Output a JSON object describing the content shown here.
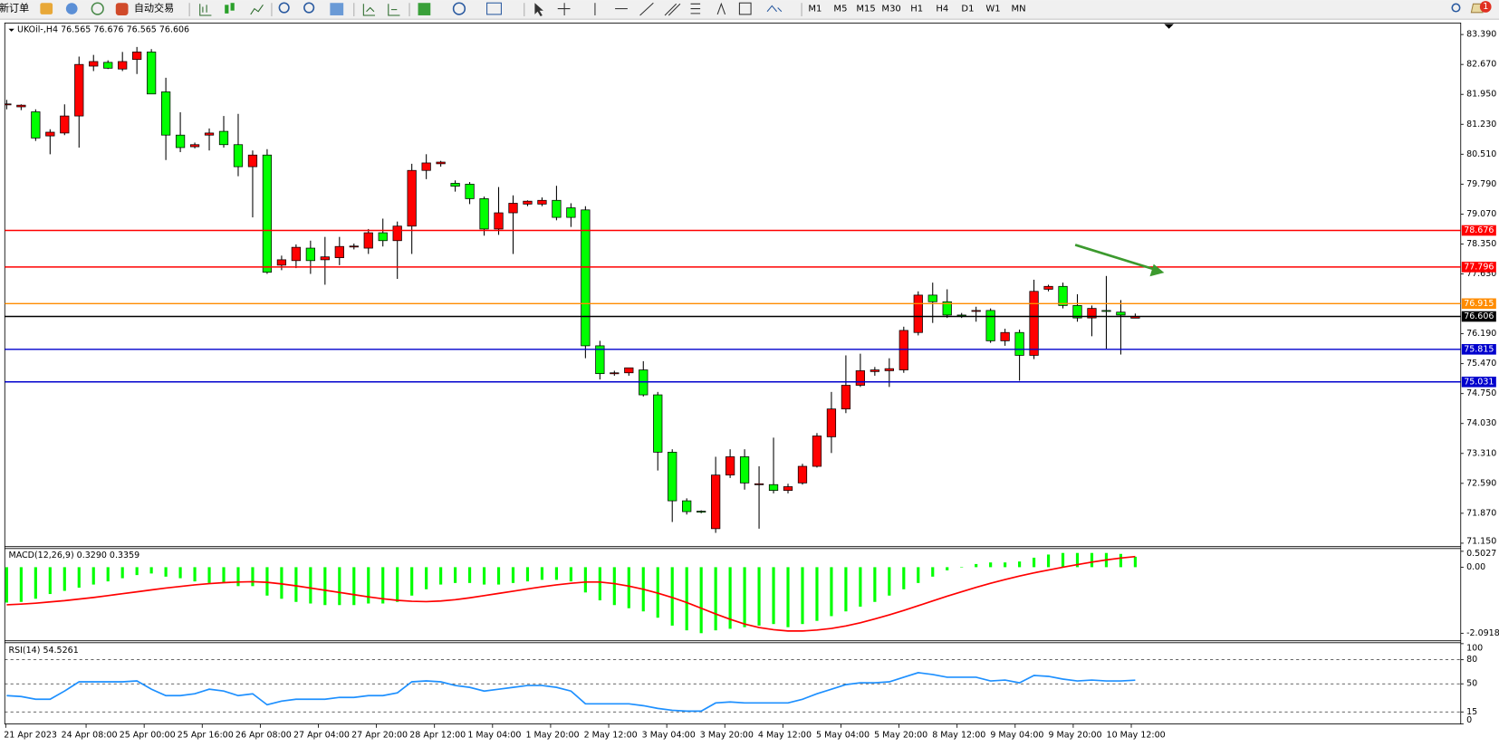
{
  "toolbar": {
    "new_order": "新订单",
    "auto_trading": "自动交易",
    "timeframes": [
      "M1",
      "M5",
      "M15",
      "M30",
      "H1",
      "H4",
      "D1",
      "W1",
      "MN"
    ],
    "notifications": "1"
  },
  "chart_data": [
    {
      "type": "candlestick",
      "title": "UKOil-,H4 76.565 76.676 76.565 76.606",
      "up_color": "#ff0000",
      "down_color": "#00ff00",
      "candles": [
        [
          81.7,
          81.82,
          81.59,
          81.72
        ],
        [
          81.65,
          81.71,
          81.57,
          81.69
        ],
        [
          81.53,
          81.59,
          80.83,
          80.9
        ],
        [
          80.95,
          81.11,
          80.51,
          81.04
        ],
        [
          81.02,
          81.71,
          80.97,
          81.43
        ],
        [
          81.43,
          82.86,
          80.67,
          82.67
        ],
        [
          82.63,
          82.9,
          82.51,
          82.74
        ],
        [
          82.72,
          82.77,
          82.56,
          82.58
        ],
        [
          82.56,
          82.97,
          82.51,
          82.74
        ],
        [
          82.79,
          83.09,
          82.44,
          82.97
        ],
        [
          82.97,
          83.04,
          81.96,
          81.96
        ],
        [
          82.01,
          82.35,
          80.37,
          80.97
        ],
        [
          80.97,
          81.52,
          80.56,
          80.67
        ],
        [
          80.69,
          80.79,
          80.65,
          80.74
        ],
        [
          80.97,
          81.13,
          80.6,
          81.02
        ],
        [
          81.06,
          81.43,
          80.67,
          80.74
        ],
        [
          80.74,
          81.48,
          79.98,
          80.21
        ],
        [
          80.21,
          80.6,
          78.99,
          80.49
        ],
        [
          80.49,
          80.63,
          77.63,
          77.67
        ],
        [
          77.84,
          78.07,
          77.72,
          77.97
        ],
        [
          77.95,
          78.34,
          77.77,
          78.27
        ],
        [
          78.25,
          78.43,
          77.63,
          77.95
        ],
        [
          77.97,
          78.52,
          77.37,
          78.04
        ],
        [
          78.02,
          78.52,
          77.84,
          78.29
        ],
        [
          78.29,
          78.36,
          78.22,
          78.3
        ],
        [
          78.25,
          78.71,
          78.11,
          78.62
        ],
        [
          78.62,
          78.96,
          78.29,
          78.43
        ],
        [
          78.43,
          78.89,
          77.51,
          78.78
        ],
        [
          78.78,
          80.28,
          78.11,
          80.12
        ],
        [
          80.12,
          80.51,
          79.91,
          80.3
        ],
        [
          80.28,
          80.35,
          80.21,
          80.32
        ],
        [
          79.81,
          79.88,
          79.61,
          79.74
        ],
        [
          79.79,
          79.84,
          79.31,
          79.44
        ],
        [
          79.44,
          79.49,
          78.55,
          78.71
        ],
        [
          78.71,
          79.72,
          78.57,
          79.1
        ],
        [
          79.1,
          79.52,
          78.11,
          79.33
        ],
        [
          79.31,
          79.4,
          79.26,
          79.38
        ],
        [
          79.31,
          79.47,
          79.26,
          79.4
        ],
        [
          79.4,
          79.75,
          78.92,
          78.99
        ],
        [
          79.22,
          79.33,
          78.76,
          78.99
        ],
        [
          79.17,
          79.26,
          75.6,
          75.9
        ],
        [
          75.9,
          76.02,
          75.09,
          75.23
        ],
        [
          75.25,
          75.3,
          75.18,
          75.25
        ],
        [
          75.25,
          75.37,
          75.18,
          75.37
        ],
        [
          75.32,
          75.53,
          74.68,
          74.72
        ],
        [
          74.72,
          74.79,
          72.9,
          73.34
        ],
        [
          73.34,
          73.41,
          71.66,
          72.17
        ],
        [
          72.17,
          72.23,
          71.84,
          71.91
        ],
        [
          71.92,
          71.94,
          71.87,
          71.91
        ],
        [
          71.5,
          73.23,
          71.4,
          72.79
        ],
        [
          72.79,
          73.41,
          72.72,
          73.23
        ],
        [
          73.23,
          73.41,
          72.44,
          72.6
        ],
        [
          72.58,
          73.0,
          71.5,
          72.58
        ],
        [
          72.56,
          73.69,
          72.35,
          72.42
        ],
        [
          72.42,
          72.58,
          72.35,
          72.51
        ],
        [
          72.6,
          73.06,
          72.56,
          73.0
        ],
        [
          73.0,
          73.8,
          72.97,
          73.73
        ],
        [
          73.71,
          74.79,
          73.32,
          74.38
        ],
        [
          74.38,
          75.67,
          74.28,
          74.95
        ],
        [
          74.95,
          75.71,
          74.91,
          75.3
        ],
        [
          75.28,
          75.39,
          75.18,
          75.32
        ],
        [
          75.3,
          75.6,
          74.91,
          75.35
        ],
        [
          75.32,
          76.36,
          75.25,
          76.27
        ],
        [
          76.22,
          77.21,
          76.15,
          77.12
        ],
        [
          77.12,
          77.42,
          76.45,
          76.96
        ],
        [
          76.96,
          77.26,
          76.57,
          76.64
        ],
        [
          76.64,
          76.69,
          76.57,
          76.63
        ],
        [
          76.73,
          76.84,
          76.48,
          76.75
        ],
        [
          76.75,
          76.8,
          75.97,
          76.02
        ],
        [
          76.02,
          76.31,
          75.9,
          76.22
        ],
        [
          76.22,
          76.29,
          75.06,
          75.67
        ],
        [
          75.67,
          77.49,
          75.58,
          77.21
        ],
        [
          77.26,
          77.37,
          77.21,
          77.33
        ],
        [
          77.33,
          77.42,
          76.8,
          76.87
        ],
        [
          76.87,
          77.14,
          76.48,
          76.57
        ],
        [
          76.57,
          76.87,
          76.13,
          76.8
        ],
        [
          76.75,
          77.58,
          75.83,
          76.73
        ],
        [
          76.71,
          77.0,
          75.69,
          76.64
        ],
        [
          76.565,
          76.676,
          76.565,
          76.606
        ]
      ],
      "ylim": [
        71.103,
        83.667
      ],
      "yticks": [
        {
          "value": 83.39,
          "label": "83.390"
        },
        {
          "value": 82.67,
          "label": "82.670"
        },
        {
          "value": 81.95,
          "label": "81.950"
        },
        {
          "value": 81.23,
          "label": "81.230"
        },
        {
          "value": 80.51,
          "label": "80.510"
        },
        {
          "value": 79.79,
          "label": "79.790"
        },
        {
          "value": 79.07,
          "label": "79.070"
        },
        {
          "value": 78.35,
          "label": "78.350"
        },
        {
          "value": 77.63,
          "label": "77.630"
        },
        {
          "value": 76.19,
          "label": "76.190"
        },
        {
          "value": 75.47,
          "label": "75.470"
        },
        {
          "value": 74.75,
          "label": "74.750"
        },
        {
          "value": 74.03,
          "label": "74.030"
        },
        {
          "value": 73.31,
          "label": "73.310"
        },
        {
          "value": 72.59,
          "label": "72.590"
        },
        {
          "value": 71.87,
          "label": "71.870"
        },
        {
          "value": 71.15,
          "label": "71.150"
        }
      ],
      "levels": [
        {
          "value": 78.676,
          "color": "#ff0000"
        },
        {
          "value": 77.796,
          "color": "#ff0000"
        },
        {
          "value": 76.915,
          "color": "#ff8c00"
        },
        {
          "value": 76.606,
          "color": "#000000"
        },
        {
          "value": 75.815,
          "color": "#0000cd"
        },
        {
          "value": 75.031,
          "color": "#0000cd"
        }
      ],
      "x_labels": [
        "21 Apr 2023",
        "24 Apr 08:00",
        "25 Apr 00:00",
        "25 Apr 16:00",
        "26 Apr 08:00",
        "27 Apr 04:00",
        "27 Apr 20:00",
        "28 Apr 12:00",
        "1 May 04:00",
        "1 May 20:00",
        "2 May 12:00",
        "3 May 04:00",
        "3 May 20:00",
        "4 May 12:00",
        "5 May 04:00",
        "5 May 20:00",
        "8 May 12:00",
        "9 May 04:00",
        "9 May 20:00",
        "10 May 12:00"
      ]
    },
    {
      "type": "macd",
      "title": "MACD(12,26,9) 0.3290 0.3359",
      "series": [
        {
          "style": "histogram",
          "color": "#00ff00",
          "values": [
            -1.12,
            -1.1,
            -1.0,
            -0.85,
            -0.75,
            -0.65,
            -0.55,
            -0.45,
            -0.35,
            -0.25,
            -0.2,
            -0.3,
            -0.35,
            -0.45,
            -0.5,
            -0.5,
            -0.6,
            -0.6,
            -0.9,
            -1.0,
            -1.1,
            -1.15,
            -1.2,
            -1.2,
            -1.2,
            -1.15,
            -1.15,
            -1.1,
            -0.9,
            -0.7,
            -0.55,
            -0.5,
            -0.5,
            -0.55,
            -0.55,
            -0.5,
            -0.45,
            -0.4,
            -0.4,
            -0.45,
            -0.8,
            -1.05,
            -1.2,
            -1.3,
            -1.4,
            -1.6,
            -1.85,
            -2.0,
            -2.09,
            -2.0,
            -1.95,
            -1.9,
            -1.85,
            -1.8,
            -1.9,
            -1.8,
            -1.7,
            -1.55,
            -1.4,
            -1.25,
            -1.1,
            -0.9,
            -0.7,
            -0.5,
            -0.3,
            -0.1,
            0.0,
            0.1,
            0.15,
            0.15,
            0.18,
            0.3,
            0.4,
            0.45,
            0.45,
            0.45,
            0.45,
            0.42,
            0.329
          ]
        },
        {
          "style": "line",
          "color": "#ff0000",
          "values": [
            -1.19,
            -1.17,
            -1.14,
            -1.1,
            -1.06,
            -1.01,
            -0.96,
            -0.9,
            -0.84,
            -0.78,
            -0.72,
            -0.66,
            -0.61,
            -0.56,
            -0.52,
            -0.49,
            -0.47,
            -0.46,
            -0.48,
            -0.53,
            -0.59,
            -0.66,
            -0.73,
            -0.8,
            -0.87,
            -0.94,
            -1.0,
            -1.05,
            -1.08,
            -1.09,
            -1.07,
            -1.03,
            -0.97,
            -0.9,
            -0.83,
            -0.76,
            -0.69,
            -0.62,
            -0.56,
            -0.51,
            -0.47,
            -0.47,
            -0.52,
            -0.6,
            -0.7,
            -0.82,
            -0.96,
            -1.12,
            -1.3,
            -1.48,
            -1.65,
            -1.8,
            -1.91,
            -1.98,
            -2.02,
            -2.02,
            -1.99,
            -1.94,
            -1.86,
            -1.76,
            -1.64,
            -1.51,
            -1.37,
            -1.22,
            -1.07,
            -0.92,
            -0.78,
            -0.64,
            -0.51,
            -0.39,
            -0.28,
            -0.18,
            -0.09,
            0.0,
            0.08,
            0.16,
            0.23,
            0.29,
            0.3359
          ]
        }
      ],
      "ylim": [
        -2.27,
        0.576
      ],
      "yticks": [
        0.5027,
        {
          "value": 0,
          "label": "0.00"
        },
        -2.0918
      ]
    },
    {
      "type": "rsi",
      "title": "RSI(14) 54.5261",
      "series": [
        {
          "style": "line",
          "color": "#1e90ff",
          "values": [
            35.3,
            34.2,
            30.8,
            30.8,
            41.0,
            52.5,
            52.5,
            52.5,
            52.5,
            53.6,
            43.3,
            35.3,
            35.3,
            37.6,
            43.3,
            41.0,
            35.3,
            37.6,
            23.9,
            28.5,
            30.8,
            30.8,
            30.8,
            33.1,
            33.1,
            35.3,
            35.3,
            38.8,
            52.5,
            53.6,
            52.5,
            47.9,
            45.6,
            41.0,
            43.3,
            45.6,
            47.9,
            47.9,
            45.6,
            41.0,
            25.1,
            25.1,
            25.1,
            25.1,
            22.8,
            19.4,
            17.1,
            16.0,
            16.0,
            26.2,
            27.4,
            26.2,
            26.2,
            26.2,
            26.2,
            30.8,
            37.6,
            43.3,
            49.0,
            51.3,
            51.3,
            52.5,
            58.2,
            63.9,
            61.6,
            58.2,
            58.2,
            58.2,
            53.6,
            54.7,
            51.3,
            60.4,
            59.3,
            55.9,
            53.6,
            54.7,
            53.6,
            53.6,
            54.5261
          ]
        }
      ],
      "ylim": [
        0,
        100
      ],
      "yticks": [
        100,
        80,
        50,
        15,
        0
      ]
    }
  ]
}
